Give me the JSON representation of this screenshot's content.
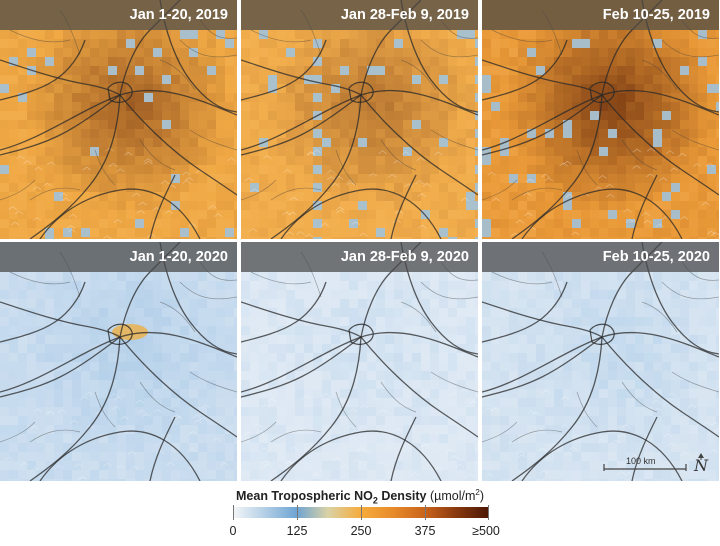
{
  "panels": [
    {
      "title": "Jan 1-20, 2019",
      "base": "#f0a945",
      "level": 0.62
    },
    {
      "title": "Jan 28-Feb 9, 2019",
      "base": "#f2ad4c",
      "level": 0.45
    },
    {
      "title": "Feb 10-25, 2019",
      "base": "#ea9a38",
      "level": 0.85
    },
    {
      "title": "Jan 1-20, 2020",
      "base": "#c9dcee",
      "level": 0.2
    },
    {
      "title": "Jan 28-Feb 9, 2020",
      "base": "#dde8f3",
      "level": 0.1
    },
    {
      "title": "Feb 10-25, 2020",
      "base": "#d4e3f1",
      "level": 0.15
    }
  ],
  "scale_bar": {
    "label": "100 km",
    "north_label": "N"
  },
  "legend": {
    "title_prefix": "Mean Tropospheric NO",
    "title_sub": "2",
    "title_suffix": " Density",
    "units_prefix": " (µmol/m",
    "units_sup": "2",
    "units_suffix": ")",
    "ticks": [
      "0",
      "125",
      "250",
      "375",
      "≥500"
    ]
  },
  "colors": {
    "low": "#f4f6f8",
    "mid_blue": "#6ea4d2",
    "mid": "#f6ac3c",
    "high": "#4a1605"
  }
}
